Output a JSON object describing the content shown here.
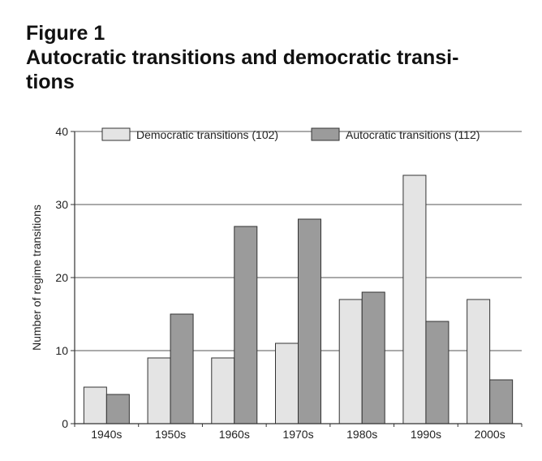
{
  "figure": {
    "label": "Figure 1",
    "title_line1": "Autocratic transitions and democratic transi-",
    "title_line2": "tions"
  },
  "chart_data": {
    "type": "bar",
    "title": "Autocratic transitions and democratic transitions",
    "xlabel": "",
    "ylabel": "Number of regime transitions",
    "categories": [
      "1940s",
      "1950s",
      "1960s",
      "1970s",
      "1980s",
      "1990s",
      "2000s"
    ],
    "series": [
      {
        "name": "Democratic transitions (102)",
        "values": [
          5,
          9,
          9,
          11,
          17,
          34,
          17
        ],
        "color": "#e4e4e4"
      },
      {
        "name": "Autocratic transitions (112)",
        "values": [
          4,
          15,
          27,
          28,
          18,
          14,
          6
        ],
        "color": "#9b9b9b"
      }
    ],
    "ylim": [
      0,
      40
    ],
    "yticks": [
      0,
      10,
      20,
      30,
      40
    ],
    "grid": true,
    "legend": "top"
  }
}
